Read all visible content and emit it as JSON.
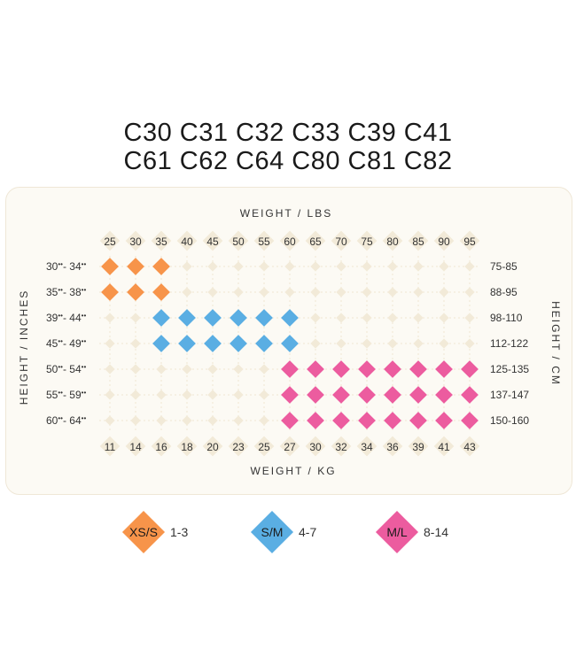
{
  "title_lines": [
    "C30 C31 C32 C33 C39 C41",
    "C61 C62 C64 C80 C81 C82"
  ],
  "colors": {
    "xs_s": "#f7944a",
    "s_m": "#5aaee3",
    "m_l": "#ec5c9f",
    "empty": "#f2ead8",
    "panel": "#fcfaf4"
  },
  "chart_data": {
    "type": "scatter",
    "top_axis_label": "WEIGHT / LBS",
    "bottom_axis_label": "WEIGHT / KG",
    "left_axis_label": "HEIGHT / INCHES",
    "right_axis_label": "HEIGHT / CM",
    "weight_lbs": [
      "25",
      "30",
      "35",
      "40",
      "45",
      "50",
      "55",
      "60",
      "65",
      "70",
      "75",
      "80",
      "85",
      "90",
      "95"
    ],
    "weight_kg": [
      "11",
      "14",
      "16",
      "18",
      "20",
      "23",
      "25",
      "27",
      "30",
      "32",
      "34",
      "36",
      "39",
      "41",
      "43"
    ],
    "height_inches": [
      {
        "from": "30",
        "to": "34"
      },
      {
        "from": "35",
        "to": "38"
      },
      {
        "from": "39",
        "to": "44"
      },
      {
        "from": "45",
        "to": "49"
      },
      {
        "from": "50",
        "to": "54"
      },
      {
        "from": "55",
        "to": "59"
      },
      {
        "from": "60",
        "to": "64"
      }
    ],
    "height_cm": [
      "75-85",
      "88-95",
      "98-110",
      "112-122",
      "125-135",
      "137-147",
      "150-160"
    ],
    "grid": [
      [
        1,
        1,
        1,
        0,
        0,
        0,
        0,
        0,
        0,
        0,
        0,
        0,
        0,
        0,
        0
      ],
      [
        1,
        1,
        1,
        0,
        0,
        0,
        0,
        0,
        0,
        0,
        0,
        0,
        0,
        0,
        0
      ],
      [
        0,
        0,
        2,
        2,
        2,
        2,
        2,
        2,
        0,
        0,
        0,
        0,
        0,
        0,
        0
      ],
      [
        0,
        0,
        2,
        2,
        2,
        2,
        2,
        2,
        0,
        0,
        0,
        0,
        0,
        0,
        0
      ],
      [
        0,
        0,
        0,
        0,
        0,
        0,
        0,
        3,
        3,
        3,
        3,
        3,
        3,
        3,
        3
      ],
      [
        0,
        0,
        0,
        0,
        0,
        0,
        0,
        3,
        3,
        3,
        3,
        3,
        3,
        3,
        3
      ],
      [
        0,
        0,
        0,
        0,
        0,
        0,
        0,
        3,
        3,
        3,
        3,
        3,
        3,
        3,
        3
      ]
    ],
    "sizes": [
      {
        "code": 1,
        "label": "XS/S",
        "range": "1-3"
      },
      {
        "code": 2,
        "label": "S/M",
        "range": "4-7"
      },
      {
        "code": 3,
        "label": "M/L",
        "range": "8-14"
      }
    ]
  }
}
